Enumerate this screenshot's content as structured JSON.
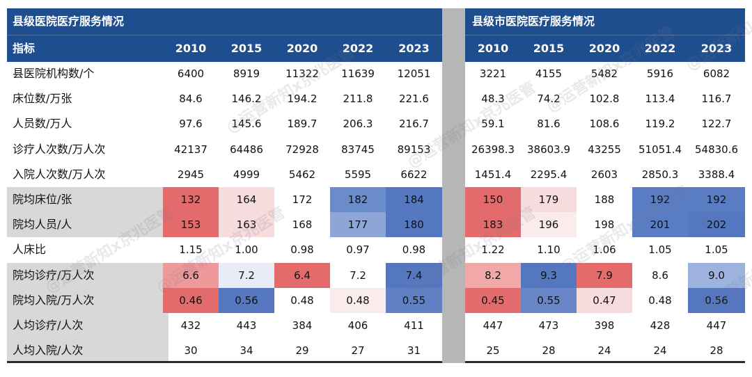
{
  "left": {
    "title": "县级医院医疗服务情况",
    "indicator_header": "指标",
    "years": [
      "2010",
      "2015",
      "2020",
      "2022",
      "2023"
    ]
  },
  "right": {
    "title": "县级市医院医疗服务情况",
    "years": [
      "2010",
      "2015",
      "2020",
      "2022",
      "2023"
    ]
  },
  "rows": [
    {
      "label": "县医院机构数/个",
      "shaded": false,
      "left": [
        "6400",
        "8919",
        "11322",
        "11639",
        "12051"
      ],
      "right": [
        "3221",
        "4155",
        "5482",
        "5916",
        "6082"
      ]
    },
    {
      "label": "床位数/万张",
      "shaded": false,
      "left": [
        "84.6",
        "146.2",
        "194.2",
        "211.8",
        "221.6"
      ],
      "right": [
        "48.3",
        "74.2",
        "102.8",
        "113.4",
        "116.7"
      ]
    },
    {
      "label": "人员数/万人",
      "shaded": false,
      "left": [
        "97.6",
        "145.6",
        "189.7",
        "206.3",
        "216.7"
      ],
      "right": [
        "59.1",
        "81.6",
        "108.6",
        "119.2",
        "122.7"
      ]
    },
    {
      "label": "诊疗人次数/万人次",
      "shaded": false,
      "left": [
        "42137",
        "64486",
        "72928",
        "83745",
        "89153"
      ],
      "right": [
        "26398.3",
        "38603.9",
        "43255",
        "51051.4",
        "54830.6"
      ]
    },
    {
      "label": "入院人次数/万人次",
      "shaded": false,
      "left": [
        "2945",
        "4999",
        "5462",
        "5595",
        "6622"
      ],
      "right": [
        "1451.4",
        "2295.4",
        "2603",
        "2850.3",
        "3388.4"
      ]
    },
    {
      "label": "院均床位/张",
      "shaded": true,
      "left": [
        "132",
        "164",
        "172",
        "182",
        "184"
      ],
      "left_colors": [
        "#e46b6b",
        "#f6dcdc",
        "#ffffff",
        "#6b8ccb",
        "#5577c0"
      ],
      "right": [
        "150",
        "179",
        "188",
        "192",
        "192"
      ],
      "right_colors": [
        "#e46b6b",
        "#f6dcdc",
        "#ffffff",
        "#5a7cc3",
        "#5a7cc3"
      ]
    },
    {
      "label": "院均人员/人",
      "shaded": true,
      "left": [
        "153",
        "163",
        "168",
        "177",
        "180"
      ],
      "left_colors": [
        "#e46b6b",
        "#f6dcdc",
        "#ffffff",
        "#8ea6d6",
        "#5577c0"
      ],
      "right": [
        "183",
        "196",
        "198",
        "201",
        "202"
      ],
      "right_colors": [
        "#e46b6b",
        "#fbecec",
        "#ffffff",
        "#5a7cc3",
        "#5577c0"
      ]
    },
    {
      "label": "人床比",
      "shaded": false,
      "left": [
        "1.15",
        "1.00",
        "0.98",
        "0.97",
        "0.98"
      ],
      "right": [
        "1.22",
        "1.10",
        "1.06",
        "1.05",
        "1.05"
      ]
    },
    {
      "label": "院均诊疗/万人次",
      "shaded": true,
      "left": [
        "6.6",
        "7.2",
        "6.4",
        "7.2",
        "7.4"
      ],
      "left_colors": [
        "#ee9a9a",
        "#e7ecf7",
        "#e46b6b",
        "#ffffff",
        "#5577c0"
      ],
      "right": [
        "8.2",
        "9.3",
        "7.9",
        "8.6",
        "9.0"
      ],
      "right_colors": [
        "#f0a8a8",
        "#5577c0",
        "#e46b6b",
        "#ffffff",
        "#9db3de"
      ]
    },
    {
      "label": "院均入院/万人次",
      "shaded": true,
      "left": [
        "0.46",
        "0.56",
        "0.48",
        "0.48",
        "0.55"
      ],
      "left_colors": [
        "#e46b6b",
        "#5577c0",
        "#ffffff",
        "#fbecec",
        "#5f80c5"
      ],
      "right": [
        "0.45",
        "0.55",
        "0.47",
        "0.48",
        "0.56"
      ],
      "right_colors": [
        "#e46b6b",
        "#6785c7",
        "#f6dcdc",
        "#ffffff",
        "#5577c0"
      ]
    },
    {
      "label": "人均诊疗/人次",
      "shaded": true,
      "left": [
        "432",
        "443",
        "384",
        "406",
        "411"
      ],
      "right": [
        "447",
        "473",
        "398",
        "428",
        "447"
      ]
    },
    {
      "label": "人均入院/人次",
      "shaded": true,
      "left": [
        "30",
        "34",
        "29",
        "27",
        "31"
      ],
      "right": [
        "25",
        "28",
        "24",
        "24",
        "28"
      ]
    }
  ],
  "watermark": "@运营新知x京兆医管"
}
